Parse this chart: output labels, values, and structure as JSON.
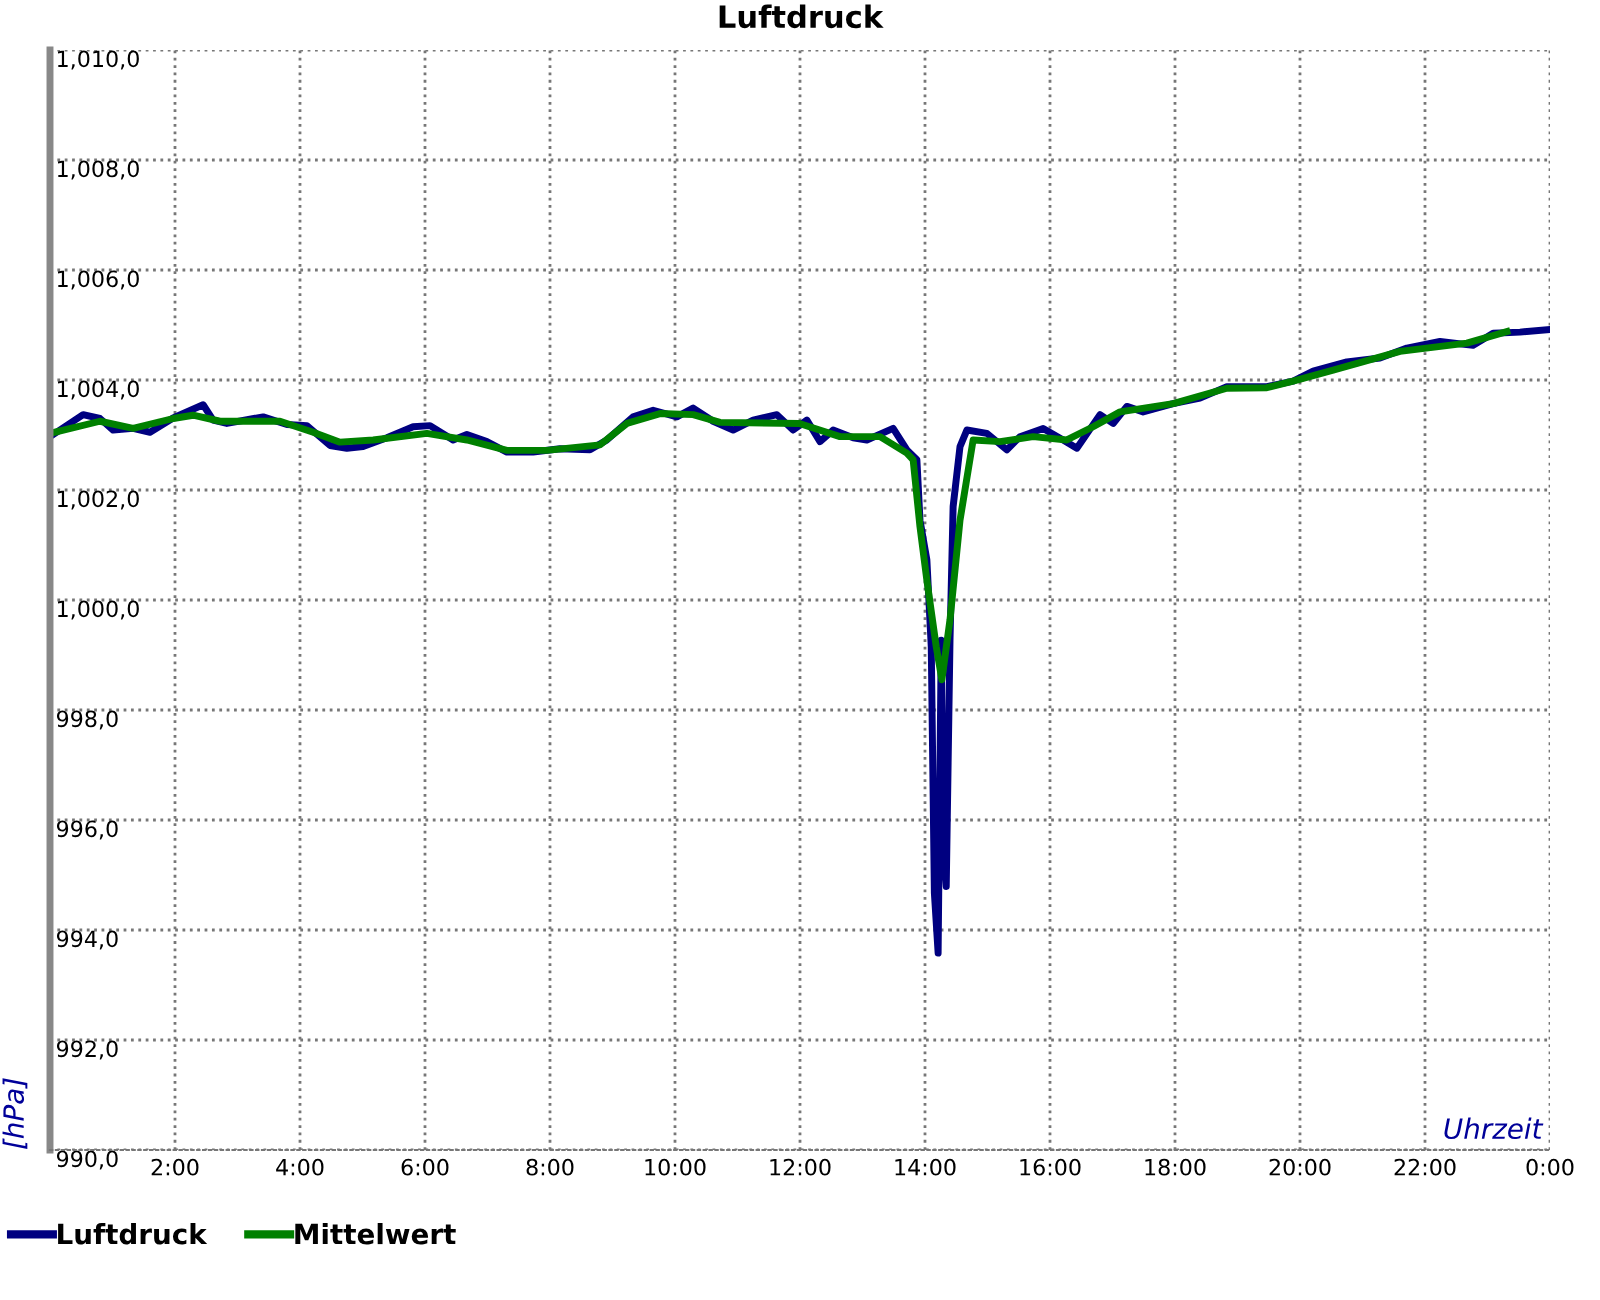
{
  "chart_data": {
    "type": "line",
    "title": "Luftdruck",
    "xlabel": "Uhrzeit",
    "ylabel": "[hPa]",
    "xlim": [
      0,
      24
    ],
    "xticks": [
      {
        "value": 0,
        "label": null
      },
      {
        "value": 2,
        "label": "2:00"
      },
      {
        "value": 4,
        "label": "4:00"
      },
      {
        "value": 6,
        "label": "6:00"
      },
      {
        "value": 8,
        "label": "8:00"
      },
      {
        "value": 10,
        "label": "10:00"
      },
      {
        "value": 12,
        "label": "12:00"
      },
      {
        "value": 14,
        "label": "14:00"
      },
      {
        "value": 16,
        "label": "16:00"
      },
      {
        "value": 18,
        "label": "18:00"
      },
      {
        "value": 20,
        "label": "20:00"
      },
      {
        "value": 22,
        "label": "22:00"
      },
      {
        "value": 24,
        "label": "0:00"
      }
    ],
    "ylim": [
      990,
      1010
    ],
    "yticks": [
      {
        "value": 990,
        "label": "990,0"
      },
      {
        "value": 992,
        "label": "992,0"
      },
      {
        "value": 994,
        "label": "994,0"
      },
      {
        "value": 996,
        "label": "996,0"
      },
      {
        "value": 998,
        "label": "998,0"
      },
      {
        "value": 1000,
        "label": "1,000,0"
      },
      {
        "value": 1002,
        "label": "1,002,0"
      },
      {
        "value": 1004,
        "label": "1,004,0"
      },
      {
        "value": 1006,
        "label": "1,006,0"
      },
      {
        "value": 1008,
        "label": "1,008,0"
      },
      {
        "value": 1010,
        "label": "1,010,0"
      }
    ],
    "grid": true,
    "legend": "bottom left",
    "marker": "none",
    "line_style": "solid",
    "series": [
      {
        "name": "Luftdruck",
        "color": "#000080",
        "x": [
          0,
          0.53,
          0.8,
          1.01,
          1.33,
          1.6,
          1.97,
          2.45,
          2.61,
          2.83,
          3.41,
          3.79,
          4.11,
          4.48,
          4.75,
          5.01,
          5.39,
          5.81,
          6.08,
          6.45,
          6.67,
          6.99,
          7.31,
          7.73,
          8.16,
          8.64,
          8.91,
          9.33,
          9.65,
          10.03,
          10.29,
          10.61,
          10.93,
          11.25,
          11.63,
          11.89,
          12.11,
          12.32,
          12.53,
          12.85,
          13.07,
          13.49,
          13.71,
          13.87,
          13.92,
          14.03,
          14.1,
          14.15,
          14.21,
          14.26,
          14.29,
          14.34,
          14.4,
          14.45,
          14.56,
          14.67,
          14.99,
          15.31,
          15.52,
          15.89,
          16.21,
          16.43,
          16.8,
          17.01,
          17.23,
          17.49,
          17.97,
          18.4,
          18.83,
          19.47,
          19.89,
          20.21,
          20.75,
          21.28,
          21.71,
          22.24,
          22.77,
          23.09,
          23.52,
          24
        ],
        "values": [
          1002.97,
          1003.37,
          1003.3,
          1003.09,
          1003.12,
          1003.05,
          1003.31,
          1003.55,
          1003.27,
          1003.21,
          1003.33,
          1003.19,
          1003.17,
          1002.81,
          1002.76,
          1002.79,
          1002.95,
          1003.15,
          1003.17,
          1002.91,
          1003.01,
          1002.88,
          1002.69,
          1002.69,
          1002.75,
          1002.73,
          1002.91,
          1003.33,
          1003.45,
          1003.33,
          1003.49,
          1003.25,
          1003.09,
          1003.27,
          1003.37,
          1003.09,
          1003.27,
          1002.88,
          1003.09,
          1002.95,
          1002.91,
          1003.12,
          1002.73,
          1002.55,
          1001.45,
          1000.73,
          999.15,
          994.67,
          993.58,
          999.27,
          995.64,
          994.79,
          999.27,
          1001.7,
          1002.79,
          1003.09,
          1003.03,
          1002.73,
          1002.97,
          1003.12,
          1002.91,
          1002.76,
          1003.37,
          1003.21,
          1003.52,
          1003.42,
          1003.57,
          1003.67,
          1003.88,
          1003.88,
          1003.98,
          1004.16,
          1004.33,
          1004.4,
          1004.58,
          1004.7,
          1004.63,
          1004.85,
          1004.87,
          1004.92
        ]
      },
      {
        "name": "Mittelwert",
        "color": "#008000",
        "x": [
          0,
          0.8,
          1.33,
          1.97,
          2.29,
          2.72,
          3.68,
          4.21,
          4.64,
          5.17,
          6.03,
          6.67,
          7.31,
          7.95,
          8.8,
          9.23,
          9.76,
          10.29,
          10.72,
          11.99,
          12.64,
          13.28,
          13.71,
          13.81,
          13.92,
          14.03,
          14.18,
          14.27,
          14.4,
          14.56,
          14.77,
          15.2,
          15.73,
          16.27,
          16.69,
          17.12,
          17.97,
          18.83,
          19.47,
          19.89,
          20.53,
          21.6,
          22.67,
          23.31
        ],
        "values": [
          1003.03,
          1003.25,
          1003.12,
          1003.3,
          1003.36,
          1003.25,
          1003.25,
          1003.05,
          1002.87,
          1002.91,
          1003.03,
          1002.91,
          1002.72,
          1002.72,
          1002.82,
          1003.21,
          1003.39,
          1003.37,
          1003.23,
          1003.21,
          1002.97,
          1002.97,
          1002.67,
          1002.55,
          1001.33,
          1000.36,
          999.15,
          998.55,
          999.64,
          1001.45,
          1002.91,
          1002.88,
          1002.97,
          1002.91,
          1003.15,
          1003.42,
          1003.57,
          1003.85,
          1003.86,
          1003.98,
          1004.18,
          1004.52,
          1004.67,
          1004.88
        ]
      }
    ]
  }
}
